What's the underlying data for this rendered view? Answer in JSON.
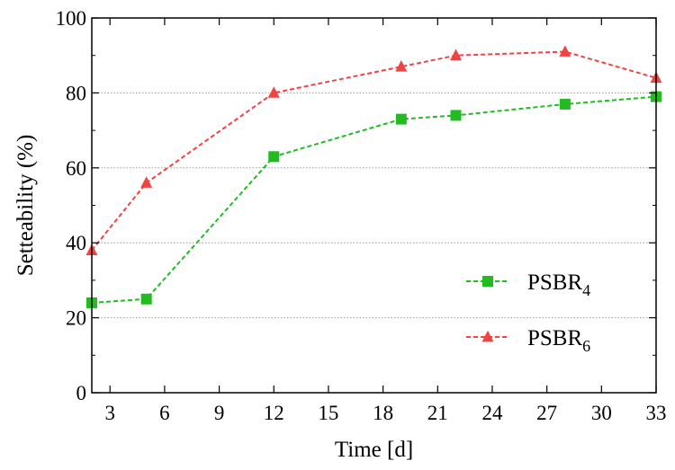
{
  "chart_data": {
    "type": "line",
    "title": "",
    "xlabel": "Time [d]",
    "ylabel": "Setteability (%)",
    "xlim": [
      2,
      33
    ],
    "ylim": [
      0,
      100
    ],
    "xticks": [
      3,
      6,
      9,
      12,
      15,
      18,
      21,
      24,
      27,
      30,
      33
    ],
    "yticks": [
      0,
      20,
      40,
      60,
      80,
      100
    ],
    "grid": "horizontal dotted",
    "legend_position": "center-right",
    "series": [
      {
        "name": "PSBR",
        "subscript": "4",
        "color": "#22bb22",
        "marker": "square",
        "line_style": "dashed",
        "x": [
          2,
          5,
          12,
          19,
          22,
          28,
          33
        ],
        "y": [
          24,
          25,
          63,
          73,
          74,
          77,
          79
        ]
      },
      {
        "name": "PSBR",
        "subscript": "6",
        "color": "#ee4444",
        "marker": "triangle",
        "line_style": "dashed",
        "x": [
          2,
          5,
          12,
          19,
          22,
          28,
          33
        ],
        "y": [
          38,
          56,
          80,
          87,
          90,
          91,
          84
        ]
      }
    ]
  }
}
